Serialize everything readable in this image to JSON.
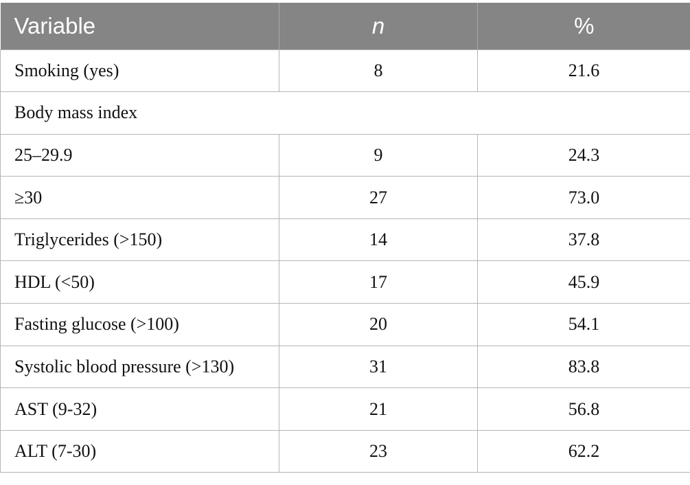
{
  "table": {
    "headers": [
      "Variable",
      "n",
      "%"
    ],
    "rows": [
      {
        "label": "Smoking (yes)",
        "n": "8",
        "pct": "21.6"
      },
      {
        "label": "Body mass index",
        "n": null,
        "pct": null
      },
      {
        "label": "25–29.9",
        "n": "9",
        "pct": "24.3"
      },
      {
        "label": "≥30",
        "n": "27",
        "pct": "73.0"
      },
      {
        "label": "Triglycerides (>150)",
        "n": "14",
        "pct": "37.8"
      },
      {
        "label": "HDL (<50)",
        "n": "17",
        "pct": "45.9"
      },
      {
        "label": "Fasting glucose (>100)",
        "n": "20",
        "pct": "54.1"
      },
      {
        "label": "Systolic blood pressure (>130)",
        "n": "31",
        "pct": "83.8"
      },
      {
        "label": "AST (9-32)",
        "n": "21",
        "pct": "56.8"
      },
      {
        "label": "ALT (7-30)",
        "n": "23",
        "pct": "62.2"
      }
    ]
  }
}
